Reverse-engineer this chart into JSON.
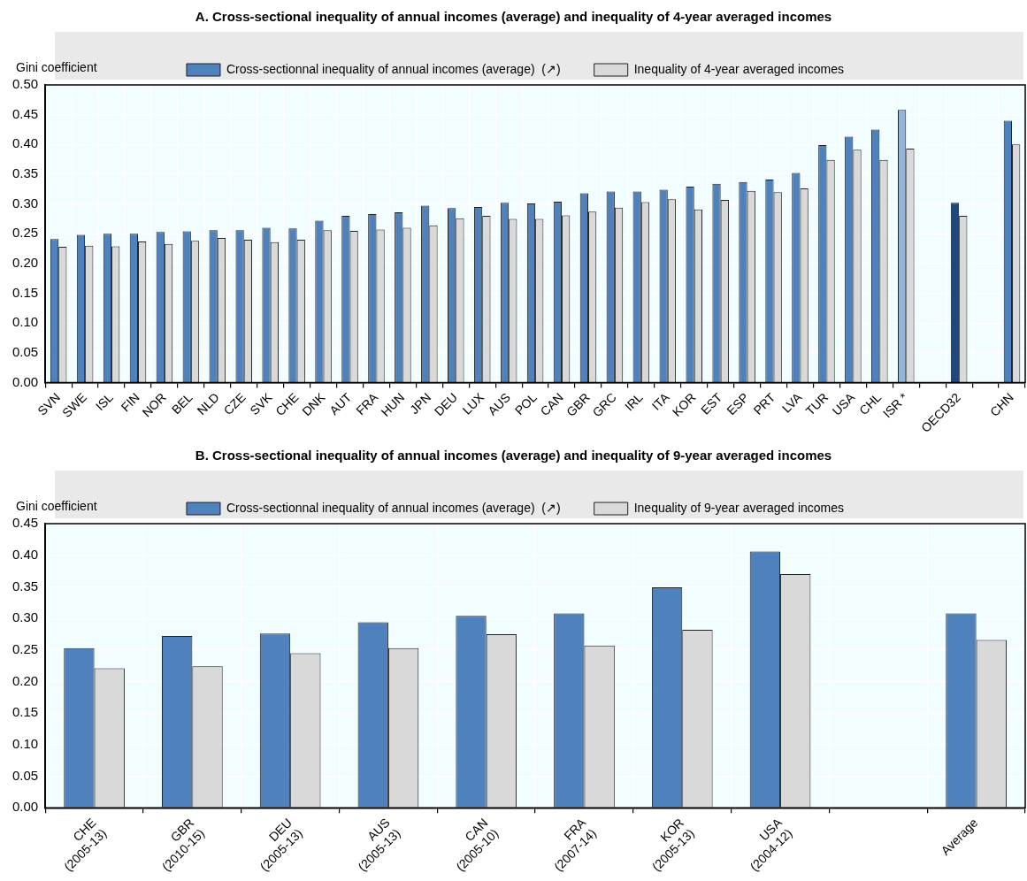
{
  "chart_data": [
    {
      "type": "bar",
      "title": "A. Cross-sectional inequality of annual incomes (average) and inequality of 4-year averaged incomes",
      "ylabel": "Gini coefficient",
      "categories": [
        "SVN",
        "SWE",
        "ISL",
        "FIN",
        "NOR",
        "BEL",
        "NLD",
        "CZE",
        "SVK",
        "CHE",
        "DNK",
        "AUT",
        "FRA",
        "HUN",
        "JPN",
        "DEU",
        "LUX",
        "AUS",
        "POL",
        "CAN",
        "GBR",
        "GRC",
        "IRL",
        "ITA",
        "KOR",
        "EST",
        "ESP",
        "PRT",
        "LVA",
        "TUR",
        "USA",
        "CHL",
        "ISR *",
        null,
        "OECD32",
        null,
        "CHN"
      ],
      "series": [
        {
          "name": "Cross-sectionnal inequality of annual incomes (average)  (↗)",
          "color": "#4f81bd",
          "colors": [
            "#4f81bd",
            "#4f81bd",
            "#4f81bd",
            "#4f81bd",
            "#4f81bd",
            "#4f81bd",
            "#4f81bd",
            "#4f81bd",
            "#4f81bd",
            "#4f81bd",
            "#4f81bd",
            "#4f81bd",
            "#4f81bd",
            "#4f81bd",
            "#4f81bd",
            "#4f81bd",
            "#4f81bd",
            "#4f81bd",
            "#4f81bd",
            "#4f81bd",
            "#4f81bd",
            "#4f81bd",
            "#4f81bd",
            "#4f81bd",
            "#4f81bd",
            "#4f81bd",
            "#4f81bd",
            "#4f81bd",
            "#4f81bd",
            "#4f81bd",
            "#4f81bd",
            "#4f81bd",
            "#95b3d7",
            "#4f81bd",
            "#1f497d",
            "#4f81bd",
            "#4f81bd"
          ],
          "values": [
            0.241,
            0.248,
            0.25,
            0.25,
            0.253,
            0.254,
            0.256,
            0.256,
            0.26,
            0.259,
            0.272,
            0.28,
            0.283,
            0.286,
            0.297,
            0.293,
            0.295,
            0.302,
            0.301,
            0.304,
            0.318,
            0.321,
            0.321,
            0.324,
            0.329,
            0.334,
            0.337,
            0.341,
            0.352,
            0.399,
            0.413,
            0.425,
            0.458,
            null,
            0.302,
            null,
            0.44
          ]
        },
        {
          "name": "Inequality of 4-year averaged incomes",
          "color": "#d9d9d9",
          "values": [
            0.228,
            0.23,
            0.229,
            0.237,
            0.233,
            0.238,
            0.243,
            0.24,
            0.236,
            0.24,
            0.256,
            0.255,
            0.257,
            0.26,
            0.264,
            0.276,
            0.28,
            0.275,
            0.275,
            0.281,
            0.287,
            0.294,
            0.303,
            0.308,
            0.291,
            0.307,
            0.322,
            0.32,
            0.326,
            0.374,
            0.391,
            0.374,
            0.393,
            null,
            0.28,
            null,
            0.4
          ]
        }
      ],
      "ylim": [
        0,
        0.5
      ],
      "yticks": [
        {
          "value": 0,
          "label": "0.00"
        },
        {
          "value": 0.05,
          "label": "0.05"
        },
        {
          "value": 0.1,
          "label": "0.10"
        },
        {
          "value": 0.15,
          "label": "0.15"
        },
        {
          "value": 0.2,
          "label": "0.20"
        },
        {
          "value": 0.25,
          "label": "0.25"
        },
        {
          "value": 0.3,
          "label": "0.30"
        },
        {
          "value": 0.35,
          "label": "0.35"
        },
        {
          "value": 0.4,
          "label": "0.40"
        },
        {
          "value": 0.45,
          "label": "0.45"
        },
        {
          "value": 0.5,
          "label": "0.50"
        }
      ],
      "grid": true,
      "legend": "top"
    },
    {
      "type": "bar",
      "title": "B. Cross-sectional inequality of annual incomes (average) and inequality of 9-year averaged incomes",
      "ylabel": "Gini coefficient",
      "categories": [
        "CHE\n(2005-13)",
        "GBR\n(2010-15)",
        "DEU\n(2005-13)",
        "AUS\n(2005-13)",
        "CAN\n(2005-10)",
        "FRA\n(2007-14)",
        "KOR\n(2005-13)",
        "USA\n(2004-12)",
        null,
        "Average"
      ],
      "series": [
        {
          "name": "Cross-sectionnal inequality of annual incomes (average)  (↗)",
          "color": "#4f81bd",
          "values": [
            0.253,
            0.272,
            0.276,
            0.294,
            0.304,
            0.308,
            0.349,
            0.406,
            null,
            0.308
          ]
        },
        {
          "name": "Inequality of 9-year averaged incomes",
          "color": "#d9d9d9",
          "values": [
            0.221,
            0.224,
            0.245,
            0.253,
            0.275,
            0.257,
            0.282,
            0.37,
            null,
            0.266
          ]
        }
      ],
      "ylim": [
        0,
        0.45
      ],
      "yticks": [
        {
          "value": 0,
          "label": "0.00"
        },
        {
          "value": 0.05,
          "label": "0.05"
        },
        {
          "value": 0.1,
          "label": "0.10"
        },
        {
          "value": 0.15,
          "label": "0.15"
        },
        {
          "value": 0.2,
          "label": "0.20"
        },
        {
          "value": 0.25,
          "label": "0.25"
        },
        {
          "value": 0.3,
          "label": "0.30"
        },
        {
          "value": 0.35,
          "label": "0.35"
        },
        {
          "value": 0.4,
          "label": "0.40"
        },
        {
          "value": 0.45,
          "label": "0.45"
        }
      ],
      "grid": true,
      "legend": "top"
    }
  ]
}
